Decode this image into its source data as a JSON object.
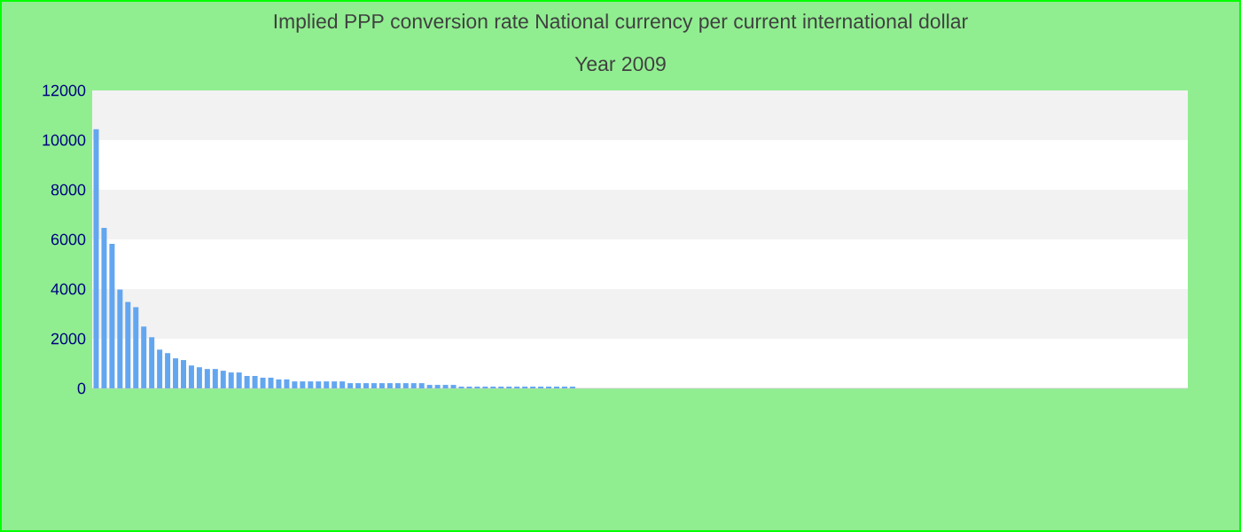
{
  "chart_data": {
    "type": "bar",
    "title": "Implied PPP conversion rate  National currency per current international dollar",
    "subtitle": "Year 2009",
    "categories": [
      null,
      null,
      null,
      null,
      null,
      null,
      null,
      null,
      null,
      null,
      null,
      null,
      null,
      null,
      null,
      null,
      null,
      null,
      null,
      null,
      null,
      null,
      null,
      null,
      null,
      null,
      null,
      null,
      null,
      null,
      null,
      null,
      null,
      null,
      null,
      null,
      null,
      null,
      null,
      null,
      null,
      null,
      null,
      null,
      null,
      null,
      null,
      null,
      null,
      null,
      null,
      null,
      null,
      null,
      null,
      null,
      null,
      null,
      null,
      null,
      null,
      null,
      null,
      null,
      null,
      null,
      null,
      null,
      null,
      null,
      null,
      null,
      null,
      null,
      null,
      null,
      null,
      null,
      null,
      null,
      null,
      null,
      null,
      null,
      null,
      null,
      null,
      null,
      null,
      null,
      null,
      null,
      null,
      null,
      null,
      null,
      null,
      null,
      null,
      null,
      null,
      null,
      null,
      null,
      null,
      null,
      null,
      null,
      null,
      null,
      null,
      null,
      null,
      null,
      null,
      null,
      null,
      null,
      null,
      null,
      null,
      null,
      null,
      null,
      null,
      null,
      null,
      null,
      null,
      null,
      null,
      null,
      null,
      null,
      null,
      null,
      null,
      null
    ],
    "values": [
      10440,
      6460,
      5820,
      3980,
      3480,
      3270,
      2490,
      2060,
      1560,
      1420,
      1210,
      1140,
      920,
      850,
      780,
      780,
      710,
      640,
      640,
      500,
      500,
      430,
      430,
      360,
      360,
      280,
      280,
      280,
      280,
      280,
      280,
      280,
      210,
      210,
      210,
      210,
      210,
      210,
      210,
      210,
      210,
      210,
      140,
      140,
      140,
      140,
      70,
      70,
      70,
      70,
      70,
      70,
      70,
      70,
      70,
      70,
      70,
      70,
      70,
      70,
      70,
      0,
      0,
      0,
      0,
      0,
      0,
      0,
      0,
      0,
      0,
      0,
      0,
      0,
      0,
      0,
      0,
      0,
      0,
      0,
      0,
      0,
      0,
      0,
      0,
      0,
      0,
      0,
      0,
      0,
      0,
      0,
      0,
      0,
      0,
      0,
      0,
      0,
      0,
      0,
      0,
      0,
      0,
      0,
      0,
      0,
      0,
      0,
      0,
      0,
      0,
      0,
      0,
      0,
      0,
      0,
      0,
      0,
      0,
      0,
      0,
      0,
      0,
      0,
      0,
      0,
      0,
      0,
      0,
      0,
      0,
      0,
      0,
      0,
      0,
      0,
      0,
      0
    ],
    "color": "#63a6f0",
    "ylim": [
      0,
      12000
    ],
    "yticks": [
      0,
      2000,
      4000,
      6000,
      8000,
      10000,
      12000
    ],
    "bands": [
      {
        "axis": "y",
        "from": 2000,
        "to": 4000,
        "color": "#f2f2f2"
      },
      {
        "axis": "y",
        "from": 6000,
        "to": 8000,
        "color": "#f2f2f2"
      },
      {
        "axis": "y",
        "from": 10000,
        "to": 12000,
        "color": "#f2f2f2"
      }
    ]
  }
}
